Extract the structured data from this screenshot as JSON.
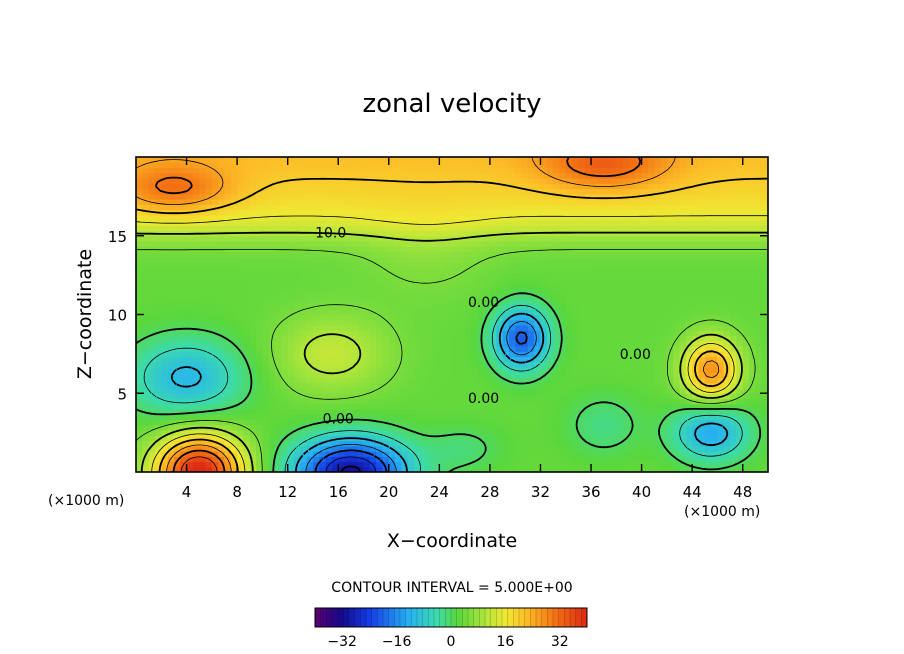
{
  "chart_data": {
    "type": "heatmap",
    "title": "zonal velocity",
    "xlabel": "X−coordinate",
    "ylabel": "Z−coordinate",
    "x_scale_note": "(×1000 m)",
    "y_scale_note": "(×1000 m)",
    "xlim": [
      0,
      50
    ],
    "ylim": [
      0,
      20
    ],
    "x_ticks": [
      4,
      8,
      12,
      16,
      20,
      24,
      28,
      32,
      36,
      40,
      44,
      48
    ],
    "x_tick_labels": [
      "4",
      "8",
      "12",
      "16",
      "20",
      "24",
      "28",
      "32",
      "36",
      "40",
      "44",
      "48"
    ],
    "y_ticks": [
      5,
      10,
      15
    ],
    "y_tick_labels": [
      "5",
      "10",
      "15"
    ],
    "contour_interval_text": "CONTOUR INTERVAL = 5.000E+00",
    "contour_interval": 5,
    "contour_labels": [
      {
        "text": "10.0",
        "x": 15.4,
        "z": 15.2
      },
      {
        "text": "0.00",
        "x": 27.5,
        "z": 10.8
      },
      {
        "text": "0.00",
        "x": 39.5,
        "z": 7.5
      },
      {
        "text": "0.00",
        "x": 27.5,
        "z": 4.7
      },
      {
        "text": "0.00",
        "x": 16.0,
        "z": 3.4
      }
    ],
    "colorbar": {
      "range": [
        -40,
        40
      ],
      "ticks": [
        -32,
        -16,
        0,
        16,
        32
      ],
      "tick_labels": [
        "−32",
        "−16",
        "0",
        "16",
        "32"
      ]
    },
    "features": [
      {
        "kind": "max",
        "x": 5,
        "z": 0.3,
        "value": 35
      },
      {
        "kind": "min",
        "x": 17,
        "z": 0.5,
        "value": -30
      },
      {
        "kind": "min",
        "x": 30.5,
        "z": 8.5,
        "value": -20
      },
      {
        "kind": "max",
        "x": 45.5,
        "z": 6.5,
        "value": 20
      },
      {
        "kind": "min",
        "x": 4,
        "z": 6,
        "value": -13
      },
      {
        "kind": "min",
        "x": 45.5,
        "z": 2.5,
        "value": -13
      },
      {
        "kind": "max",
        "x": 15.5,
        "z": 7.5,
        "value": 10
      },
      {
        "kind": "max",
        "x": 3,
        "z": 18,
        "value": 22
      },
      {
        "kind": "max",
        "x": 37,
        "z": 19.5,
        "value": 22
      }
    ]
  }
}
